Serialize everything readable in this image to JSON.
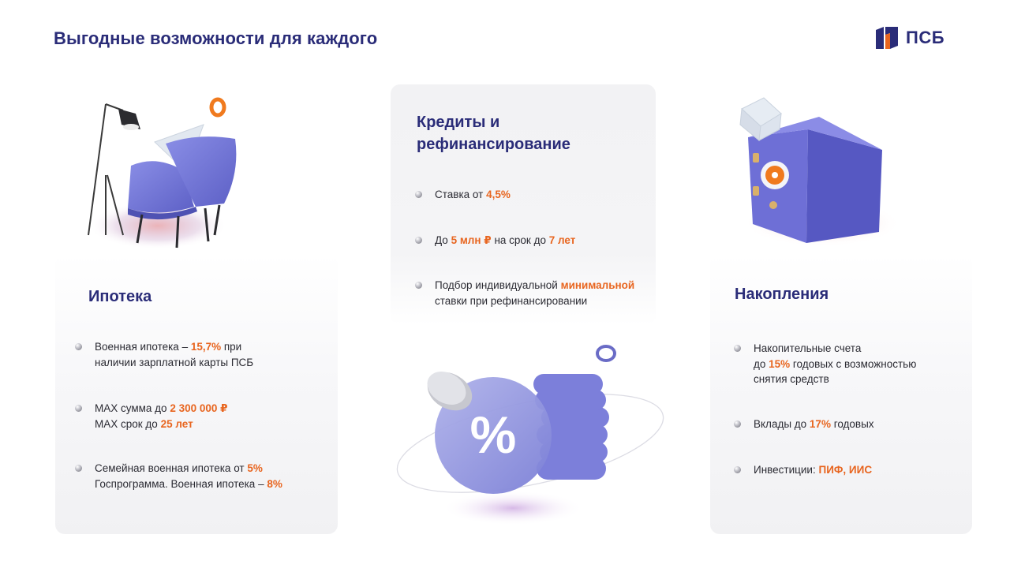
{
  "header": {
    "title": "Выгодные возможности для каждого",
    "logo_text": "ПСБ",
    "brand_color": "#2a2c78",
    "accent_color": "#e8651f"
  },
  "cards": {
    "mortgage": {
      "title": "Ипотека",
      "bullets": [
        {
          "lines": [
            [
              {
                "t": "Военная ипотека – "
              },
              {
                "t": "15,7%",
                "hl": true
              },
              {
                "t": " при"
              }
            ],
            [
              {
                "t": "наличии зарплатной карты ПСБ"
              }
            ]
          ]
        },
        {
          "lines": [
            [
              {
                "t": "MAX сумма до "
              },
              {
                "t": "2 300 000 ₽",
                "hl": true
              }
            ],
            [
              {
                "t": "MAX срок  до "
              },
              {
                "t": "25 лет",
                "hl": true
              }
            ]
          ]
        },
        {
          "lines": [
            [
              {
                "t": "Семейная военная ипотека от "
              },
              {
                "t": "5%",
                "hl": true
              }
            ],
            [
              {
                "t": "Госпрограмма. Военная ипотека – "
              },
              {
                "t": "8%",
                "hl": true
              }
            ]
          ]
        }
      ]
    },
    "credits": {
      "title_line1": "Кредиты и",
      "title_line2": "рефинансирование",
      "bullets": [
        {
          "lines": [
            [
              {
                "t": "Ставка от "
              },
              {
                "t": "4,5%",
                "hl": true
              }
            ]
          ]
        },
        {
          "lines": [
            [
              {
                "t": "До "
              },
              {
                "t": "5 млн ₽",
                "hl": true
              },
              {
                "t": " на срок  до "
              },
              {
                "t": "7 лет",
                "hl": true
              }
            ]
          ]
        },
        {
          "lines": [
            [
              {
                "t": "Подбор индивидуальной "
              },
              {
                "t": "минимальной",
                "hl": true
              }
            ],
            [
              {
                "t": "ставки при рефинансировании"
              }
            ]
          ]
        }
      ]
    },
    "savings": {
      "title": "Накопления",
      "bullets": [
        {
          "lines": [
            [
              {
                "t": "Накопительные счета"
              }
            ],
            [
              {
                "t": "до "
              },
              {
                "t": "15%",
                "hl": true
              },
              {
                "t": " годовых с возможностью"
              }
            ],
            [
              {
                "t": "снятия средств"
              }
            ]
          ]
        },
        {
          "lines": [
            [
              {
                "t": "Вклады до "
              },
              {
                "t": "17%",
                "hl": true
              },
              {
                "t": " годовых"
              }
            ]
          ]
        },
        {
          "lines": [
            [
              {
                "t": "Инвестиции: "
              },
              {
                "t": "ПИФ, ИИС",
                "hl": true
              }
            ]
          ]
        }
      ]
    }
  },
  "illustrations": {
    "mortgage": "armchair-lamp-illustration",
    "credits": "percent-coin-stack-illustration",
    "savings": "safe-box-illustration"
  }
}
